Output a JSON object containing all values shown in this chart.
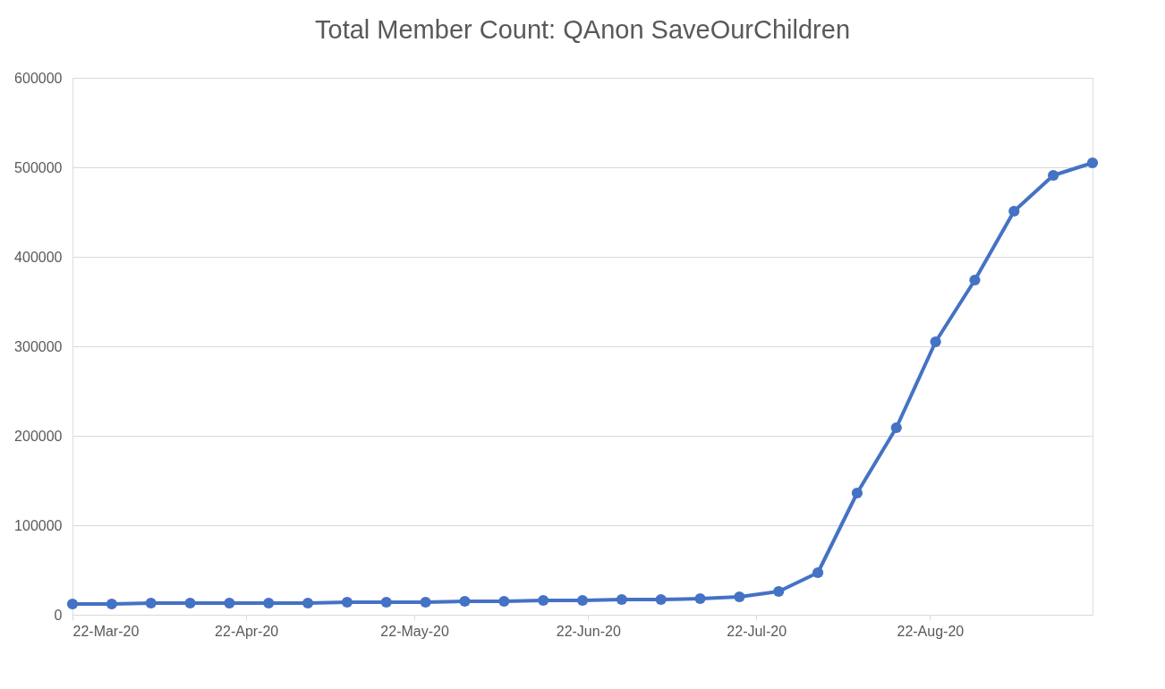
{
  "chart_data": {
    "type": "line",
    "title": "Total Member Count: QAnon SaveOurChildren",
    "x": [
      "2020-03-22",
      "2020-03-29",
      "2020-04-05",
      "2020-04-12",
      "2020-04-19",
      "2020-04-26",
      "2020-05-03",
      "2020-05-10",
      "2020-05-17",
      "2020-05-24",
      "2020-05-31",
      "2020-06-07",
      "2020-06-14",
      "2020-06-21",
      "2020-06-28",
      "2020-07-05",
      "2020-07-12",
      "2020-07-19",
      "2020-07-26",
      "2020-08-02",
      "2020-08-09",
      "2020-08-16",
      "2020-08-23",
      "2020-08-30",
      "2020-09-06",
      "2020-09-13",
      "2020-09-20"
    ],
    "series": [
      {
        "color": "#4472c4",
        "values": [
          12000,
          12000,
          13000,
          13000,
          13000,
          13000,
          13000,
          14000,
          14000,
          14000,
          15000,
          15000,
          16000,
          16000,
          17000,
          17000,
          18000,
          20000,
          26000,
          47000,
          136000,
          209000,
          305000,
          374000,
          451000,
          491000,
          505000
        ]
      }
    ],
    "xlim": [
      "2020-03-22",
      "2020-09-20"
    ],
    "xticks": [
      {
        "value": "2020-03-22",
        "label": "22-Mar-20"
      },
      {
        "value": "2020-04-22",
        "label": "22-Apr-20"
      },
      {
        "value": "2020-05-22",
        "label": "22-May-20"
      },
      {
        "value": "2020-06-22",
        "label": "22-Jun-20"
      },
      {
        "value": "2020-07-22",
        "label": "22-Jul-20"
      },
      {
        "value": "2020-08-22",
        "label": "22-Aug-20"
      }
    ],
    "ylim": [
      0,
      600000
    ],
    "yticks": [
      0,
      100000,
      200000,
      300000,
      400000,
      500000,
      600000
    ],
    "grid": "y",
    "marker": "circle",
    "line_style": "solid"
  }
}
